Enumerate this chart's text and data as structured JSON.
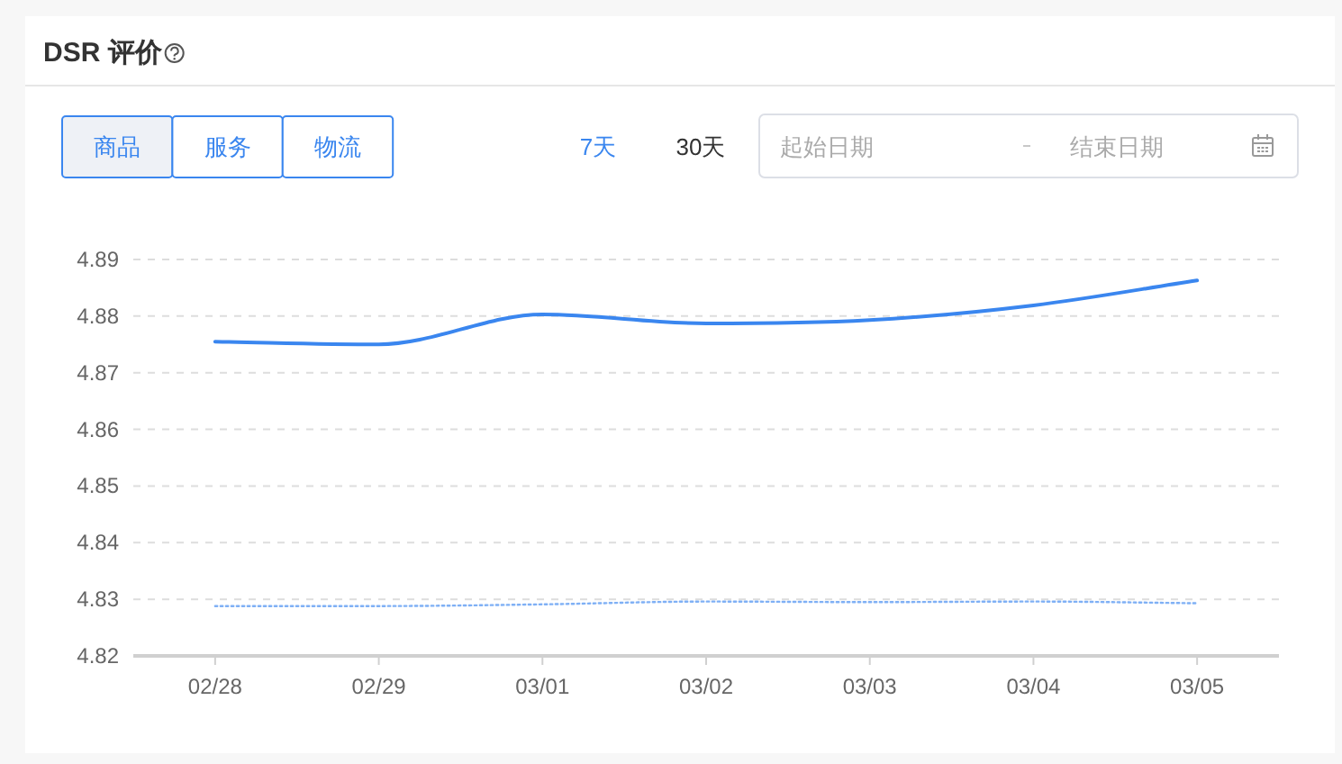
{
  "chart_data": {
    "type": "line",
    "title": "DSR 评价",
    "annotations": [
      "商品",
      "服务",
      "物流",
      "7天",
      "30天",
      "起始日期",
      "结束日期"
    ],
    "categories": [
      "02/28",
      "02/29",
      "03/01",
      "03/02",
      "03/03",
      "03/04",
      "03/05"
    ],
    "series": [
      {
        "color": "#3a86ef",
        "line_style": "solid",
        "values": [
          4.8755,
          4.875,
          4.8803,
          4.8787,
          4.8793,
          4.8819,
          4.8863
        ]
      },
      {
        "color": "#7fb0f5",
        "line_style": "dotted",
        "values": [
          4.8288,
          4.8288,
          4.8291,
          4.8296,
          4.8295,
          4.8296,
          4.8293
        ]
      }
    ],
    "ylim": [
      4.82,
      4.89
    ],
    "yticks": [
      4.82,
      4.83,
      4.84,
      4.85,
      4.86,
      4.87,
      4.88,
      4.89
    ],
    "grid": "y",
    "marker": "none"
  }
}
